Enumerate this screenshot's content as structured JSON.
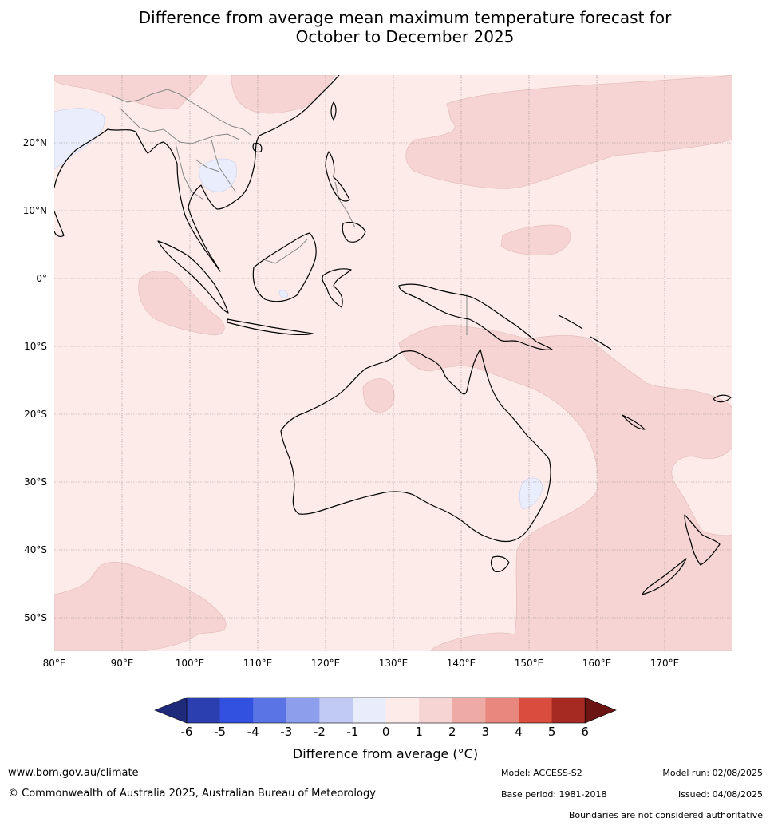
{
  "title_line1": "Difference from average mean maximum temperature forecast for",
  "title_line2": "October to December 2025",
  "map": {
    "lon_labels": [
      "80°E",
      "90°E",
      "100°E",
      "110°E",
      "120°E",
      "130°E",
      "140°E",
      "150°E",
      "160°E",
      "170°E"
    ],
    "lat_labels": [
      "20°N",
      "10°N",
      "0°",
      "10°S",
      "20°S",
      "30°S",
      "40°S",
      "50°S"
    ],
    "colors": {
      "background_anomaly_0_1": "#fcebe9",
      "anomaly_1_2": "#f5d4d3",
      "anomaly_minus1_0": "#eaedfb",
      "coastline": "#000000",
      "border": "#888888",
      "gridline": "#9a8f8f"
    }
  },
  "colorbar": {
    "ticks": [
      "-6",
      "-5",
      "-4",
      "-3",
      "-2",
      "-1",
      "0",
      "1",
      "2",
      "3",
      "4",
      "5",
      "6"
    ],
    "colors": [
      "#1f2b7a",
      "#2b3fb0",
      "#3251e0",
      "#5a74e6",
      "#8c9eec",
      "#c1c9f5",
      "#e9ecfb",
      "#fcebe9",
      "#f5d4d3",
      "#eeaba6",
      "#e8877d",
      "#da4c3e",
      "#a62a22",
      "#6b1414"
    ],
    "label": "Difference from average (°C)"
  },
  "footer": {
    "website": "www.bom.gov.au/climate",
    "copyright": "© Commonwealth of Australia 2025, Australian Bureau of Meteorology",
    "model": "Model: ACCESS-S2",
    "base_period": "Base period: 1981-2018",
    "model_run": "Model run: 02/08/2025",
    "issued": "Issued: 04/08/2025",
    "disclaimer": "Boundaries are not considered authoritative"
  }
}
